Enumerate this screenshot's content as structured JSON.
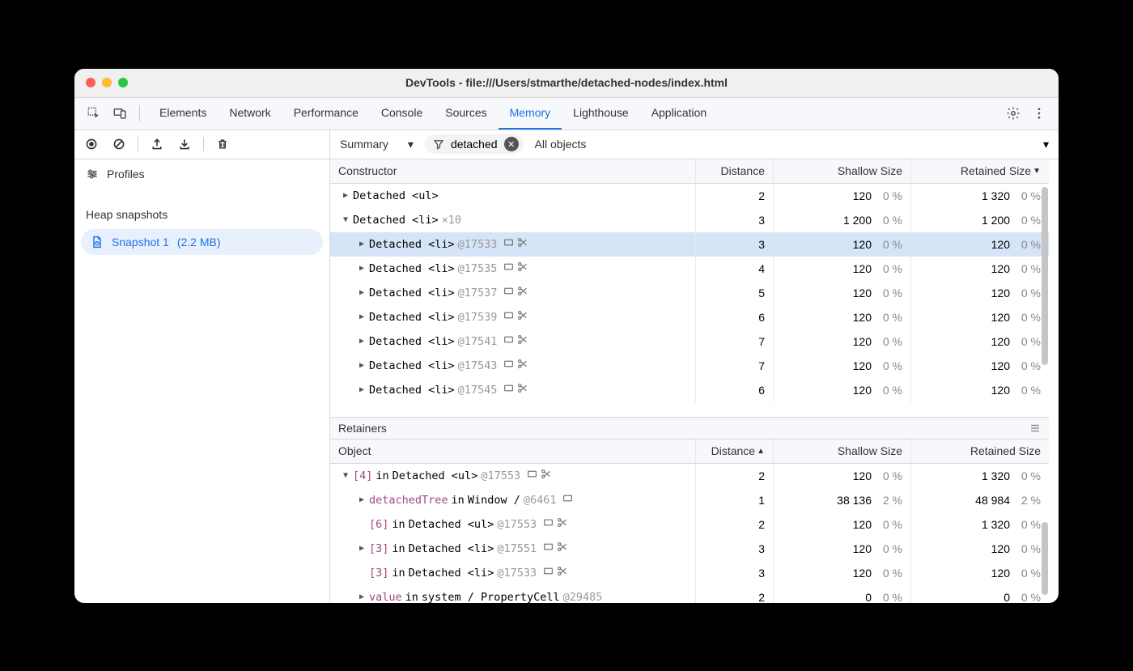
{
  "colors": {
    "window_bg": "#ffffff",
    "page_bg": "#000000",
    "traffic_red": "#ff5f57",
    "traffic_yellow": "#febc2e",
    "traffic_green": "#28c840",
    "active_tab": "#1a73e8",
    "selected_row": "#d6e4f7",
    "sidebar_selected": "#e8f0fe",
    "muted": "#999999"
  },
  "window": {
    "title": "DevTools - file:///Users/stmarthe/detached-nodes/index.html"
  },
  "tabs": {
    "items": [
      "Elements",
      "Network",
      "Performance",
      "Console",
      "Sources",
      "Memory",
      "Lighthouse",
      "Application"
    ],
    "active": "Memory"
  },
  "toolbar": {
    "view_dropdown": "Summary",
    "filter_value": "detached",
    "objects_dropdown": "All objects"
  },
  "sidebar": {
    "profiles_label": "Profiles",
    "section_label": "Heap snapshots",
    "snapshot": {
      "label": "Snapshot 1",
      "size": "(2.2 MB)"
    }
  },
  "top_table": {
    "columns": [
      "Constructor",
      "Distance",
      "Shallow Size",
      "Retained Size"
    ],
    "sort_col": 3,
    "rows": [
      {
        "indent": 0,
        "expand": "closed",
        "label_parts": [
          {
            "t": "Detached <ul>"
          }
        ],
        "icons": [],
        "distance": "2",
        "shallow": "120",
        "shallow_pct": "0 %",
        "retained": "1 320",
        "retained_pct": "0 %",
        "selected": false
      },
      {
        "indent": 0,
        "expand": "open",
        "label_parts": [
          {
            "t": "Detached <li>"
          },
          {
            "t": "  ×10",
            "cls": "muted"
          }
        ],
        "icons": [],
        "distance": "3",
        "shallow": "1 200",
        "shallow_pct": "0 %",
        "retained": "1 200",
        "retained_pct": "0 %",
        "selected": false
      },
      {
        "indent": 1,
        "expand": "closed",
        "label_parts": [
          {
            "t": "Detached <li> "
          },
          {
            "t": "@17533",
            "cls": "muted"
          }
        ],
        "icons": [
          "box",
          "scissors"
        ],
        "distance": "3",
        "shallow": "120",
        "shallow_pct": "0 %",
        "retained": "120",
        "retained_pct": "0 %",
        "selected": true
      },
      {
        "indent": 1,
        "expand": "closed",
        "label_parts": [
          {
            "t": "Detached <li> "
          },
          {
            "t": "@17535",
            "cls": "muted"
          }
        ],
        "icons": [
          "box",
          "scissors"
        ],
        "distance": "4",
        "shallow": "120",
        "shallow_pct": "0 %",
        "retained": "120",
        "retained_pct": "0 %",
        "selected": false
      },
      {
        "indent": 1,
        "expand": "closed",
        "label_parts": [
          {
            "t": "Detached <li> "
          },
          {
            "t": "@17537",
            "cls": "muted"
          }
        ],
        "icons": [
          "box",
          "scissors"
        ],
        "distance": "5",
        "shallow": "120",
        "shallow_pct": "0 %",
        "retained": "120",
        "retained_pct": "0 %",
        "selected": false
      },
      {
        "indent": 1,
        "expand": "closed",
        "label_parts": [
          {
            "t": "Detached <li> "
          },
          {
            "t": "@17539",
            "cls": "muted"
          }
        ],
        "icons": [
          "box",
          "scissors"
        ],
        "distance": "6",
        "shallow": "120",
        "shallow_pct": "0 %",
        "retained": "120",
        "retained_pct": "0 %",
        "selected": false
      },
      {
        "indent": 1,
        "expand": "closed",
        "label_parts": [
          {
            "t": "Detached <li> "
          },
          {
            "t": "@17541",
            "cls": "muted"
          }
        ],
        "icons": [
          "box",
          "scissors"
        ],
        "distance": "7",
        "shallow": "120",
        "shallow_pct": "0 %",
        "retained": "120",
        "retained_pct": "0 %",
        "selected": false
      },
      {
        "indent": 1,
        "expand": "closed",
        "label_parts": [
          {
            "t": "Detached <li> "
          },
          {
            "t": "@17543",
            "cls": "muted"
          }
        ],
        "icons": [
          "box",
          "scissors"
        ],
        "distance": "7",
        "shallow": "120",
        "shallow_pct": "0 %",
        "retained": "120",
        "retained_pct": "0 %",
        "selected": false
      },
      {
        "indent": 1,
        "expand": "closed",
        "label_parts": [
          {
            "t": "Detached <li> "
          },
          {
            "t": "@17545",
            "cls": "muted"
          }
        ],
        "icons": [
          "box",
          "scissors"
        ],
        "distance": "6",
        "shallow": "120",
        "shallow_pct": "0 %",
        "retained": "120",
        "retained_pct": "0 %",
        "selected": false
      }
    ]
  },
  "retainers": {
    "title": "Retainers",
    "columns": [
      "Object",
      "Distance",
      "Shallow Size",
      "Retained Size"
    ],
    "sort_col": 1,
    "sort_dir": "asc",
    "rows": [
      {
        "indent": 0,
        "expand": "open",
        "label_parts": [
          {
            "t": "[4]",
            "cls": "idx"
          },
          {
            "t": " in "
          },
          {
            "t": "Detached <ul> "
          },
          {
            "t": "@17553",
            "cls": "muted"
          }
        ],
        "icons": [
          "box",
          "scissors"
        ],
        "distance": "2",
        "shallow": "120",
        "shallow_pct": "0 %",
        "retained": "1 320",
        "retained_pct": "0 %"
      },
      {
        "indent": 1,
        "expand": "closed",
        "label_parts": [
          {
            "t": "detachedTree",
            "cls": "idx"
          },
          {
            "t": " in "
          },
          {
            "t": "Window / "
          },
          {
            "t": "  @6461",
            "cls": "muted"
          }
        ],
        "icons": [
          "box"
        ],
        "distance": "1",
        "shallow": "38 136",
        "shallow_pct": "2 %",
        "retained": "48 984",
        "retained_pct": "2 %"
      },
      {
        "indent": 1,
        "expand": "none",
        "label_parts": [
          {
            "t": "[6]",
            "cls": "idx"
          },
          {
            "t": " in "
          },
          {
            "t": "Detached <ul> "
          },
          {
            "t": "@17553",
            "cls": "muted"
          }
        ],
        "icons": [
          "box",
          "scissors"
        ],
        "distance": "2",
        "shallow": "120",
        "shallow_pct": "0 %",
        "retained": "1 320",
        "retained_pct": "0 %"
      },
      {
        "indent": 1,
        "expand": "closed",
        "label_parts": [
          {
            "t": "[3]",
            "cls": "idx"
          },
          {
            "t": " in "
          },
          {
            "t": "Detached <li> "
          },
          {
            "t": "@17551",
            "cls": "muted"
          }
        ],
        "icons": [
          "box",
          "scissors"
        ],
        "distance": "3",
        "shallow": "120",
        "shallow_pct": "0 %",
        "retained": "120",
        "retained_pct": "0 %"
      },
      {
        "indent": 1,
        "expand": "none",
        "label_parts": [
          {
            "t": "[3]",
            "cls": "idx"
          },
          {
            "t": " in "
          },
          {
            "t": "Detached <li> "
          },
          {
            "t": "@17533",
            "cls": "muted"
          }
        ],
        "icons": [
          "box",
          "scissors"
        ],
        "distance": "3",
        "shallow": "120",
        "shallow_pct": "0 %",
        "retained": "120",
        "retained_pct": "0 %"
      },
      {
        "indent": 1,
        "expand": "closed",
        "label_parts": [
          {
            "t": "value",
            "cls": "idx"
          },
          {
            "t": " in "
          },
          {
            "t": "system / PropertyCell "
          },
          {
            "t": "@29485",
            "cls": "muted"
          }
        ],
        "icons": [],
        "distance": "2",
        "shallow": "0",
        "shallow_pct": "0 %",
        "retained": "0",
        "retained_pct": "0 %"
      }
    ]
  }
}
